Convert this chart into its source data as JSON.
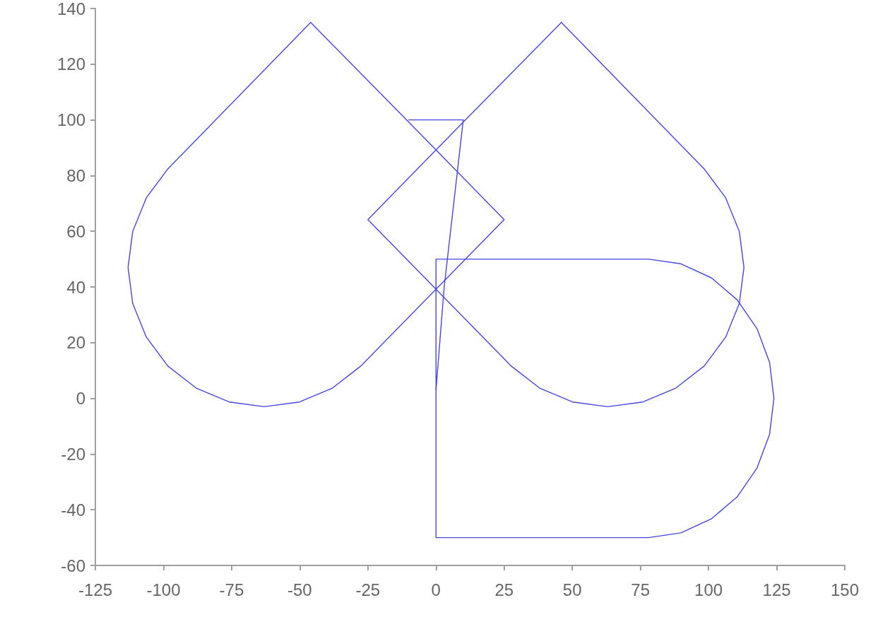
{
  "chart_data": {
    "type": "line",
    "xlim": [
      -125,
      150
    ],
    "ylim": [
      -60,
      140
    ],
    "xticks": [
      -125,
      -100,
      -75,
      -50,
      -25,
      0,
      25,
      50,
      75,
      100,
      125,
      150
    ],
    "yticks": [
      -60,
      -40,
      -20,
      0,
      20,
      40,
      60,
      80,
      100,
      120,
      140
    ],
    "grid": false,
    "marker": "none",
    "line_style": "solid",
    "series": [
      {
        "color": "#4646e6",
        "x": [
          -46,
          -98.4,
          -106.3,
          -111.3,
          -113,
          -111.3,
          -106.3,
          -98.4,
          -88,
          -75.9,
          -63,
          -50.1,
          -38,
          -27.6,
          25,
          null,
          25,
          -10,
          -46
        ],
        "values": [
          135,
          82.4,
          72,
          59.9,
          47,
          34.1,
          22,
          11.6,
          3.7,
          -1.3,
          -3,
          -1.3,
          3.7,
          11.6,
          64.2,
          null,
          64.2,
          99.2,
          135
        ]
      },
      {
        "color": "#4646e6",
        "x": [
          46,
          98.4,
          106.3,
          111.3,
          113,
          111.3,
          106.3,
          98.4,
          88,
          75.9,
          63,
          50.1,
          38,
          27.6,
          -25,
          null,
          -25,
          10,
          46
        ],
        "values": [
          135,
          82.4,
          72,
          59.9,
          47,
          34.1,
          22,
          11.6,
          3.7,
          -1.3,
          -3,
          -1.3,
          3.7,
          11.6,
          64.2,
          null,
          64.2,
          99.2,
          135
        ]
      },
      {
        "color": "#4646e6",
        "x": [
          -10,
          10,
          3,
          0
        ],
        "values": [
          100,
          100,
          40,
          3
        ]
      },
      {
        "color": "#4646e6",
        "x": [
          0,
          78,
          89.9,
          101,
          110.5,
          117.8,
          122.4,
          124,
          122.4,
          117.8,
          110.5,
          101,
          89.9,
          78,
          0,
          null,
          0,
          0,
          0
        ],
        "values": [
          50,
          50,
          48.3,
          43.3,
          35.4,
          25,
          12.9,
          0,
          -12.9,
          -25,
          -35.4,
          -43.3,
          -48.3,
          -50,
          -50,
          null,
          -50,
          0,
          50
        ]
      }
    ]
  }
}
